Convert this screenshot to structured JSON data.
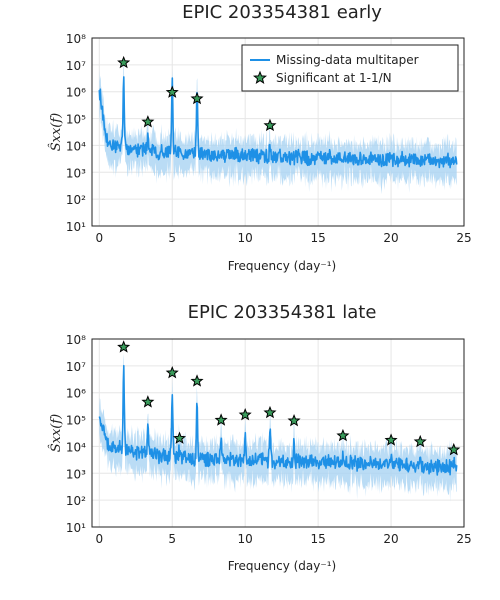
{
  "colors": {
    "line": "#1e90e6",
    "band": "#a9d3f3",
    "marker": "#3a9c5c",
    "marker_edge": "#000000"
  },
  "chart_data": [
    {
      "type": "line",
      "title": "EPIC 203354381 early",
      "xlabel": "Frequency (day⁻¹)",
      "ylabel": "Ŝxx(f)",
      "xlim": [
        -0.5,
        25
      ],
      "ylim": [
        10,
        100000000
      ],
      "yscale": "log",
      "xticks": [
        0,
        5,
        10,
        15,
        20,
        25
      ],
      "yticks": [
        {
          "value": 10,
          "label": "10¹"
        },
        {
          "value": 100,
          "label": "10²"
        },
        {
          "value": 1000,
          "label": "10³"
        },
        {
          "value": 10000,
          "label": "10⁴"
        },
        {
          "value": 100000,
          "label": "10⁵"
        },
        {
          "value": 1000000,
          "label": "10⁶"
        },
        {
          "value": 10000000,
          "label": "10⁷"
        },
        {
          "value": 100000000,
          "label": "10⁸"
        }
      ],
      "grid": true,
      "legend": {
        "placement": "top-right",
        "entries": [
          "Missing-data multitaper",
          "Significant at 1-1/N"
        ]
      },
      "series": [
        {
          "name": "Missing-data multitaper",
          "style": "line-with-band",
          "baseline": [
            [
              0,
              1500000
            ],
            [
              0.15,
              300000
            ],
            [
              0.35,
              30000
            ],
            [
              0.6,
              15000
            ],
            [
              1.0,
              10000
            ],
            [
              2.5,
              7000
            ],
            [
              4.0,
              6000
            ],
            [
              6.0,
              5000
            ],
            [
              9.0,
              4200
            ],
            [
              12.0,
              4000
            ],
            [
              15.0,
              3500
            ],
            [
              18.0,
              3200
            ],
            [
              21.0,
              3000
            ],
            [
              24.5,
              2500
            ]
          ],
          "peaks": [
            [
              1.67,
              2500000
            ],
            [
              3.33,
              35000
            ],
            [
              5.0,
              1800000
            ],
            [
              6.7,
              1200000
            ],
            [
              11.7,
              12000
            ]
          ]
        },
        {
          "name": "Significant at 1-1/N",
          "style": "star-markers",
          "points": [
            [
              1.67,
              12000000
            ],
            [
              3.33,
              75000
            ],
            [
              5.0,
              950000
            ],
            [
              6.7,
              550000
            ],
            [
              11.7,
              55000
            ]
          ]
        }
      ]
    },
    {
      "type": "line",
      "title": "EPIC 203354381 late",
      "xlabel": "Frequency (day⁻¹)",
      "ylabel": "Ŝxx(f)",
      "xlim": [
        -0.5,
        25
      ],
      "ylim": [
        10,
        100000000
      ],
      "yscale": "log",
      "xticks": [
        0,
        5,
        10,
        15,
        20,
        25
      ],
      "yticks": [
        {
          "value": 10,
          "label": "10¹"
        },
        {
          "value": 100,
          "label": "10²"
        },
        {
          "value": 1000,
          "label": "10³"
        },
        {
          "value": 10000,
          "label": "10⁴"
        },
        {
          "value": 100000,
          "label": "10⁵"
        },
        {
          "value": 1000000,
          "label": "10⁶"
        },
        {
          "value": 10000000,
          "label": "10⁷"
        },
        {
          "value": 100000000,
          "label": "10⁸"
        }
      ],
      "grid": true,
      "series": [
        {
          "name": "Missing-data multitaper",
          "style": "line-with-band",
          "baseline": [
            [
              0,
              150000
            ],
            [
              0.2,
              60000
            ],
            [
              0.5,
              15000
            ],
            [
              1.0,
              9000
            ],
            [
              2.5,
              6000
            ],
            [
              4.0,
              4500
            ],
            [
              6.0,
              3800
            ],
            [
              9.0,
              3200
            ],
            [
              12.0,
              2800
            ],
            [
              15.0,
              2600
            ],
            [
              18.0,
              2300
            ],
            [
              21.0,
              2000
            ],
            [
              24.5,
              1500
            ]
          ],
          "peaks": [
            [
              1.67,
              11000000
            ],
            [
              3.33,
              90000
            ],
            [
              5.0,
              1200000
            ],
            [
              5.5,
              8000
            ],
            [
              6.7,
              600000
            ],
            [
              8.35,
              15000
            ],
            [
              10.0,
              30000
            ],
            [
              11.7,
              40000
            ],
            [
              13.35,
              15000
            ],
            [
              16.7,
              5000
            ],
            [
              20.0,
              4000
            ],
            [
              22.0,
              3500
            ],
            [
              24.3,
              3000
            ]
          ]
        },
        {
          "name": "Significant at 1-1/N",
          "style": "star-markers",
          "points": [
            [
              1.67,
              50000000
            ],
            [
              3.33,
              450000
            ],
            [
              5.0,
              5500000
            ],
            [
              5.5,
              20000
            ],
            [
              6.7,
              2700000
            ],
            [
              8.35,
              95000
            ],
            [
              10.0,
              150000
            ],
            [
              11.7,
              180000
            ],
            [
              13.35,
              90000
            ],
            [
              16.7,
              25000
            ],
            [
              20.0,
              17000
            ],
            [
              22.0,
              15000
            ],
            [
              24.3,
              7500
            ]
          ]
        }
      ]
    }
  ]
}
